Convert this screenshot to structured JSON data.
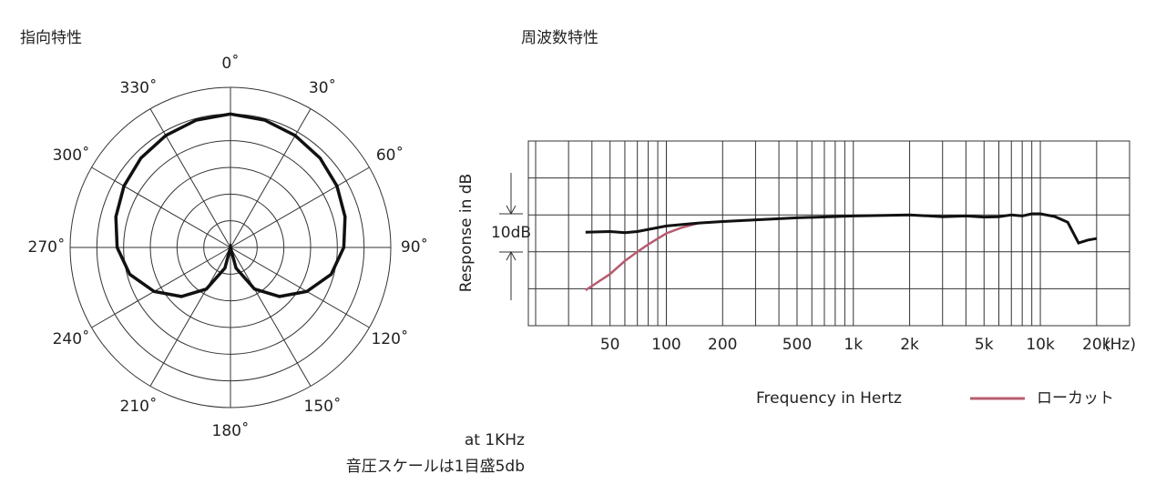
{
  "chart_data": [
    {
      "type": "polar",
      "title": "指向特性",
      "notes": [
        "at 1KHz",
        "音圧スケールは1目盛5db"
      ],
      "theta": [
        0,
        15,
        30,
        45,
        60,
        75,
        90,
        105,
        120,
        135,
        150,
        165,
        180,
        195,
        210,
        225,
        240,
        255,
        270,
        285,
        300,
        315,
        330,
        345
      ],
      "values": [
        0,
        -0.3,
        -0.8,
        -1.3,
        -2,
        -2.8,
        -3.8,
        -5.5,
        -8.5,
        -12,
        -16,
        -21,
        -25,
        -21,
        -16,
        -12,
        -8.5,
        -5.5,
        -3.8,
        -2.8,
        -2,
        -1.3,
        -0.8,
        -0.3
      ],
      "color": "#111111",
      "rlim": [
        -25,
        5
      ],
      "rticks": [
        -20,
        -15,
        -10,
        -5,
        0,
        5
      ],
      "thetaticks": [
        {
          "value": 0,
          "label": "0˚"
        },
        {
          "value": 30,
          "label": "30˚"
        },
        {
          "value": 60,
          "label": "60˚"
        },
        {
          "value": 90,
          "label": "90˚"
        },
        {
          "value": 120,
          "label": "120˚"
        },
        {
          "value": 150,
          "label": "150˚"
        },
        {
          "value": 180,
          "label": "180˚"
        },
        {
          "value": 210,
          "label": "210˚"
        },
        {
          "value": 240,
          "label": "240˚"
        },
        {
          "value": 270,
          "label": "270˚"
        },
        {
          "value": 300,
          "label": "300˚"
        },
        {
          "value": 330,
          "label": "330˚"
        }
      ]
    },
    {
      "type": "line",
      "title": "周波数特性",
      "x_label": "Frequency in Hertz",
      "x_unit": "(Hz)",
      "y_label": "Response in dB",
      "scale_note": "10dB",
      "xscale": "log",
      "xlim": [
        20,
        30000
      ],
      "ylim": [
        -30,
        20
      ],
      "xticks": [
        50,
        100,
        200,
        500,
        {
          "value": 1000,
          "label": "1k"
        },
        {
          "value": 2000,
          "label": "2k"
        },
        {
          "value": 5000,
          "label": "5k"
        },
        {
          "value": 10000,
          "label": "10k"
        },
        {
          "value": 20000,
          "label": "20k"
        }
      ],
      "xgrid": [
        20,
        30,
        40,
        50,
        60,
        70,
        80,
        90,
        100,
        200,
        300,
        400,
        500,
        600,
        700,
        800,
        900,
        1000,
        2000,
        3000,
        4000,
        5000,
        6000,
        7000,
        8000,
        9000,
        10000,
        20000
      ],
      "yticks": [
        -30,
        -20,
        -10,
        0,
        10,
        20
      ],
      "legend": "bottom-right",
      "series": [
        {
          "color": "#111111",
          "x": [
            37,
            50,
            60,
            70,
            100,
            150,
            200,
            500,
            1000,
            2000,
            3000,
            4000,
            5000,
            6000,
            7000,
            8000,
            9000,
            10000,
            12000,
            14000,
            16000,
            18000,
            20000
          ],
          "values": [
            -4.7,
            -4.5,
            -4.8,
            -4.5,
            -3,
            -2.2,
            -1.8,
            -0.8,
            -0.3,
            0,
            -0.5,
            -0.3,
            -0.6,
            -0.5,
            0,
            -0.3,
            0.3,
            0.3,
            -0.5,
            -2,
            -7.6,
            -6.8,
            -6.4
          ]
        },
        {
          "name": "ローカット",
          "color": "#b85c70",
          "x": [
            37,
            50,
            60,
            70,
            80,
            100,
            120,
            150
          ],
          "values": [
            -20.4,
            -16,
            -12.5,
            -10,
            -8,
            -5,
            -3.5,
            -2.2
          ]
        }
      ]
    }
  ]
}
